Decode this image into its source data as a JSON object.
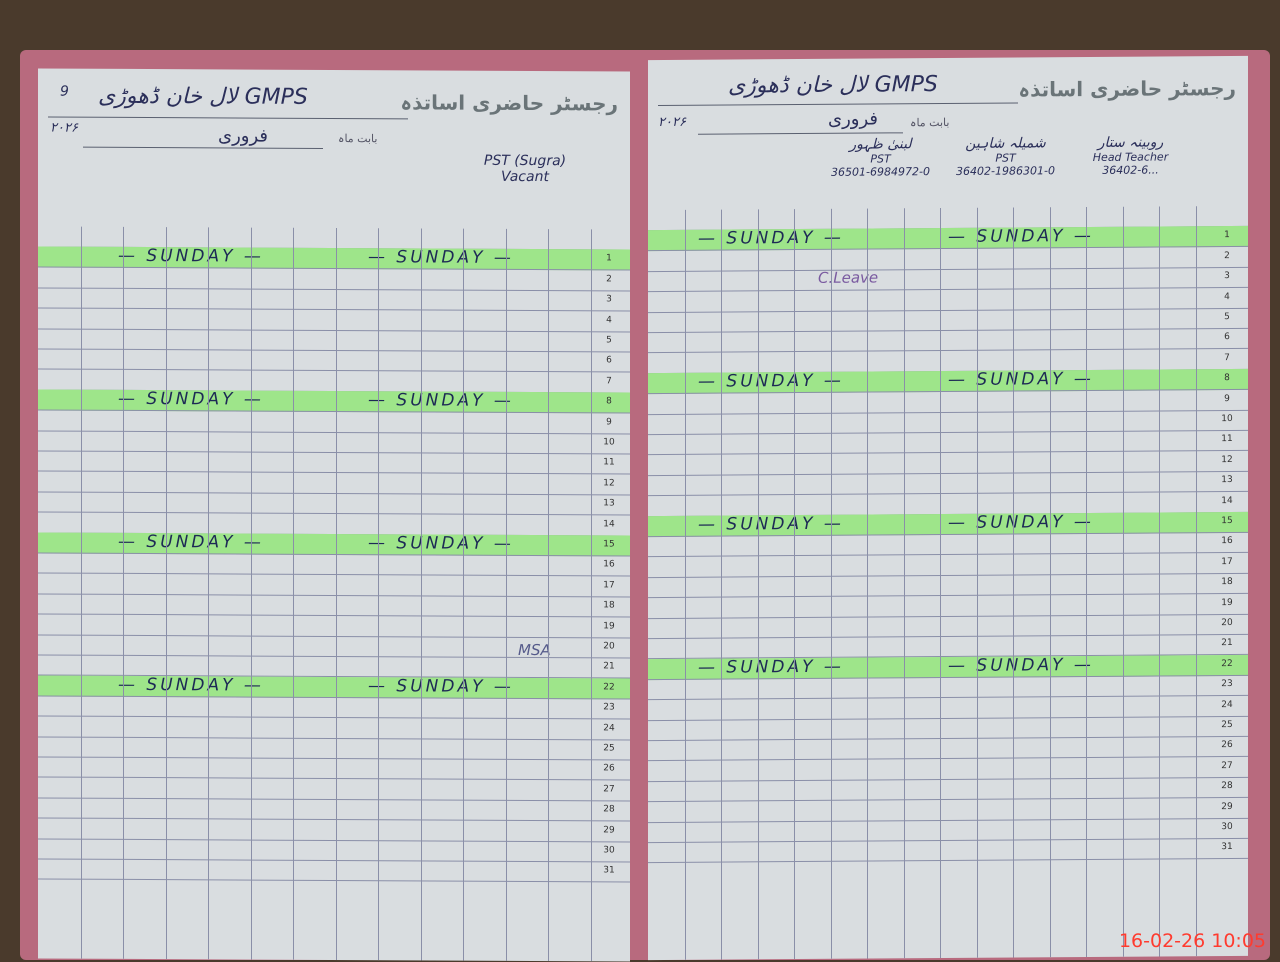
{
  "left_page": {
    "register_title": "رجسٹر حاضری اساتذہ",
    "school": "GMPS لال خان ڈھوڑی",
    "month_label": "بابت ماہ",
    "month": "فروری",
    "page_no": "9",
    "year": "۲۰۲۶",
    "teacher_1": "PST (Sugra) Vacant",
    "sunday_rows": [
      1,
      8,
      15,
      22
    ],
    "sunday_text": "SUNDAY",
    "scribbles": [
      "MSA"
    ]
  },
  "right_page": {
    "register_title": "رجسٹر حاضری اساتذہ",
    "school": "GMPS لال خان ڈھوڑی",
    "month_label": "بابت ماہ",
    "month": "فروری",
    "year": "۲۰۲۶",
    "teachers": [
      {
        "name": "روبینہ ستار",
        "designation": "Head Teacher",
        "cnic": "36402-6..."
      },
      {
        "name": "شمیلہ شاہین",
        "designation": "PST",
        "cnic": "36402-1986301-0"
      },
      {
        "name": "لبنیٰ ظہور",
        "designation": "PST",
        "cnic": "36501-6984972-0"
      }
    ],
    "leave_note": "C.Leave",
    "sunday_rows": [
      1,
      8,
      15,
      22
    ],
    "sunday_text": "SUNDAY"
  },
  "row_numbers": [
    1,
    2,
    3,
    4,
    5,
    6,
    7,
    8,
    9,
    10,
    11,
    12,
    13,
    14,
    15,
    16,
    17,
    18,
    19,
    20,
    21,
    22,
    23,
    24,
    25,
    26,
    27,
    28,
    29,
    30,
    31
  ],
  "timestamp": "16-02-26  10:05",
  "colors": {
    "highlight": "#9ee58a",
    "ink": "#2b2f5a",
    "timestamp": "#ff3b2f",
    "cover": "#b86a7e"
  }
}
